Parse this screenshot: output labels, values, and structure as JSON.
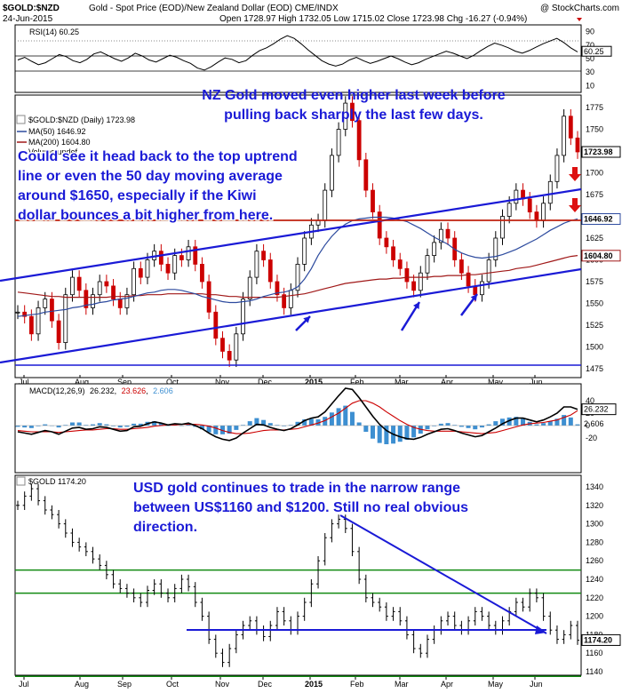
{
  "header": {
    "symbol": "$GOLD:$NZD",
    "description": "Gold - Spot Price (EOD)/New Zealand Dollar (EOD)  CME/INDX",
    "watermark": "@ StockCharts.com",
    "date": "24-Jun-2015",
    "ohlc_text": "Open 1728.97  High 1732.05  Low 1715.02  Close 1723.98  Chg -16.27 (-0.94%)"
  },
  "rsi_panel": {
    "label": "RSI(14) 60.25",
    "last_value": "60.25",
    "ticks": [
      "90",
      "70",
      "50",
      "30",
      "10"
    ],
    "levels": [
      70,
      30
    ],
    "series": [
      48,
      52,
      46,
      41,
      44,
      50,
      56,
      53,
      47,
      44,
      49,
      57,
      60,
      55,
      50,
      46,
      51,
      58,
      54,
      48,
      45,
      50,
      55,
      52,
      47,
      43,
      36,
      33,
      38,
      45,
      51,
      49,
      44,
      47,
      55,
      62,
      66,
      72,
      79,
      84,
      80,
      72,
      63,
      55,
      47,
      42,
      39,
      42,
      48,
      52,
      47,
      43,
      46,
      50,
      54,
      50,
      45,
      41,
      44,
      49,
      53,
      57,
      61,
      58,
      54,
      50,
      55,
      62,
      68,
      73,
      70,
      66,
      61,
      58,
      62,
      67,
      72,
      76,
      80,
      74,
      66,
      60
    ]
  },
  "price_panel": {
    "legend_title": "$GOLD:$NZD (Daily) 1723.98",
    "ma50_label": "MA(50) 1646.92",
    "ma200_label": "MA(200) 1604.80",
    "volume_label": "Volume undef",
    "last_price": "1723.98",
    "ma50_value": "1646.92",
    "ma200_value": "1604.80",
    "ticks": [
      "1775",
      "1750",
      "1725",
      "1700",
      "1675",
      "1650",
      "1625",
      "1600",
      "1575",
      "1550",
      "1525",
      "1500",
      "1475"
    ],
    "close": [
      1540,
      1535,
      1515,
      1545,
      1555,
      1530,
      1505,
      1560,
      1580,
      1565,
      1545,
      1560,
      1575,
      1570,
      1555,
      1545,
      1560,
      1590,
      1580,
      1600,
      1610,
      1595,
      1585,
      1605,
      1600,
      1615,
      1595,
      1575,
      1540,
      1510,
      1495,
      1485,
      1515,
      1555,
      1580,
      1610,
      1600,
      1575,
      1560,
      1545,
      1565,
      1595,
      1625,
      1640,
      1645,
      1680,
      1720,
      1750,
      1780,
      1760,
      1715,
      1680,
      1655,
      1625,
      1615,
      1600,
      1590,
      1575,
      1565,
      1585,
      1605,
      1620,
      1635,
      1625,
      1600,
      1585,
      1570,
      1560,
      1575,
      1600,
      1625,
      1650,
      1665,
      1680,
      1670,
      1655,
      1645,
      1665,
      1690,
      1720,
      1765,
      1740,
      1724
    ],
    "ma50": [
      1535,
      1536,
      1537,
      1538,
      1540,
      1541,
      1542,
      1543,
      1545,
      1546,
      1548,
      1549,
      1551,
      1552,
      1554,
      1555,
      1556,
      1558,
      1560,
      1562,
      1563,
      1565,
      1566,
      1566,
      1565,
      1563,
      1561,
      1558,
      1556,
      1554,
      1552,
      1551,
      1551,
      1552,
      1553,
      1555,
      1558,
      1560,
      1562,
      1563,
      1565,
      1569,
      1578,
      1590,
      1605,
      1617,
      1627,
      1635,
      1641,
      1645,
      1647,
      1648,
      1649,
      1649,
      1649,
      1648,
      1646,
      1644,
      1640,
      1636,
      1631,
      1626,
      1622,
      1618,
      1612,
      1608,
      1605,
      1603,
      1602,
      1603,
      1604,
      1606,
      1609,
      1612,
      1616,
      1620,
      1624,
      1629,
      1634,
      1638,
      1642,
      1645,
      1647
    ],
    "ma200": [
      1563,
      1562,
      1561,
      1560,
      1559,
      1558,
      1558,
      1557,
      1557,
      1557,
      1557,
      1557,
      1557,
      1557,
      1558,
      1558,
      1558,
      1559,
      1559,
      1560,
      1560,
      1560,
      1561,
      1561,
      1561,
      1561,
      1561,
      1561,
      1560,
      1560,
      1559,
      1558,
      1558,
      1557,
      1557,
      1557,
      1557,
      1557,
      1557,
      1558,
      1559,
      1560,
      1561,
      1563,
      1565,
      1567,
      1569,
      1571,
      1573,
      1574,
      1575,
      1576,
      1577,
      1578,
      1578,
      1579,
      1579,
      1580,
      1580,
      1580,
      1580,
      1581,
      1581,
      1582,
      1582,
      1582,
      1583,
      1583,
      1584,
      1585,
      1586,
      1587,
      1588,
      1590,
      1591,
      1592,
      1594,
      1596,
      1598,
      1600,
      1602,
      1604,
      1605
    ],
    "annotation": [
      "NZ Gold moved even higher last week before",
      "pulling back sharply the last few days."
    ],
    "annotation2": [
      "Could see it head back to the top uptrend",
      "line or even the 50 day moving average",
      "around $1650, especially if the Kiwi",
      "dollar bounces a bit higher from here."
    ]
  },
  "macd_panel": {
    "label_prefix": "MACD(12,26,9)",
    "macd_value": "26.232",
    "signal_value": "23.626",
    "hist_value": "2.606",
    "ticks": [
      "40",
      "20",
      "0",
      "-20"
    ],
    "macd": [
      -10,
      -12,
      -14,
      -11,
      -8,
      -10,
      -14,
      -9,
      -4,
      -3,
      -6,
      -5,
      -2,
      -3,
      -6,
      -9,
      -8,
      -2,
      -1,
      3,
      6,
      4,
      1,
      3,
      2,
      4,
      0,
      -5,
      -12,
      -18,
      -22,
      -24,
      -20,
      -12,
      -5,
      2,
      1,
      -3,
      -6,
      -8,
      -5,
      1,
      8,
      12,
      14,
      22,
      35,
      48,
      60,
      58,
      45,
      30,
      15,
      2,
      -8,
      -14,
      -18,
      -21,
      -22,
      -19,
      -14,
      -10,
      -6,
      -5,
      -8,
      -12,
      -15,
      -18,
      -16,
      -10,
      -4,
      3,
      8,
      12,
      12,
      9,
      6,
      9,
      14,
      20,
      30,
      30,
      26
    ],
    "signal": [
      -8,
      -9,
      -10,
      -10,
      -10,
      -10,
      -11,
      -10,
      -9,
      -8,
      -7,
      -7,
      -6,
      -5,
      -5,
      -6,
      -6,
      -5,
      -4,
      -3,
      -1,
      0,
      1,
      1,
      2,
      2,
      2,
      1,
      -1,
      -4,
      -8,
      -11,
      -13,
      -13,
      -12,
      -10,
      -8,
      -7,
      -7,
      -7,
      -6,
      -5,
      -2,
      1,
      4,
      8,
      14,
      20,
      28,
      36,
      40,
      40,
      36,
      30,
      22,
      15,
      8,
      2,
      -3,
      -6,
      -8,
      -9,
      -9,
      -9,
      -9,
      -10,
      -11,
      -12,
      -13,
      -12,
      -11,
      -8,
      -5,
      -2,
      1,
      3,
      4,
      5,
      7,
      9,
      13,
      17,
      24
    ]
  },
  "usd_panel": {
    "label": "$GOLD 1174.20",
    "last_price": "1174.20",
    "ticks": [
      "1340",
      "1320",
      "1300",
      "1280",
      "1260",
      "1240",
      "1220",
      "1200",
      "1180",
      "1160",
      "1140"
    ],
    "close": [
      1320,
      1330,
      1338,
      1325,
      1315,
      1310,
      1300,
      1290,
      1280,
      1275,
      1270,
      1262,
      1255,
      1245,
      1235,
      1230,
      1225,
      1220,
      1215,
      1228,
      1235,
      1225,
      1220,
      1230,
      1240,
      1232,
      1215,
      1200,
      1175,
      1160,
      1150,
      1165,
      1180,
      1190,
      1195,
      1185,
      1178,
      1190,
      1205,
      1195,
      1185,
      1200,
      1215,
      1235,
      1260,
      1285,
      1300,
      1305,
      1295,
      1270,
      1240,
      1220,
      1215,
      1210,
      1200,
      1205,
      1195,
      1180,
      1165,
      1160,
      1175,
      1185,
      1195,
      1200,
      1190,
      1185,
      1195,
      1205,
      1200,
      1190,
      1185,
      1195,
      1205,
      1215,
      1210,
      1225,
      1220,
      1200,
      1185,
      1175,
      1180,
      1190,
      1174
    ],
    "annotation": [
      "USD gold continues to trade in the narrow range",
      "between US$1160 and $1200. Still no real  obvious",
      "direction."
    ]
  },
  "xaxis": {
    "labels": [
      "Jul",
      "Aug",
      "Sep",
      "Oct",
      "Nov",
      "Dec",
      "2015",
      "Feb",
      "Mar",
      "Apr",
      "May",
      "Jun"
    ],
    "bold": "2015"
  },
  "colors": {
    "price": "#000000",
    "up_candle": "#000000",
    "down_candle": "#cc0000",
    "ma50": "#2c4a9e",
    "ma200": "#a01818",
    "trend": "#1a1ad6",
    "resistance": "#dd1111",
    "support_green": "#138a13",
    "hist": "#3d8fd1"
  }
}
